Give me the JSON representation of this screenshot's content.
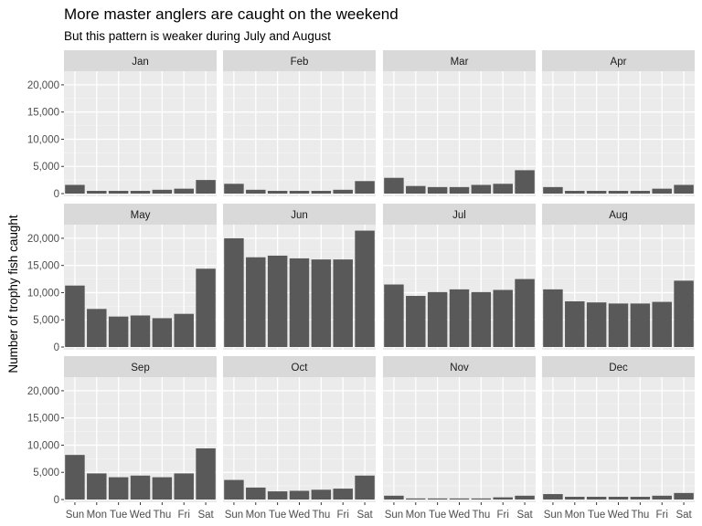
{
  "chart_data": {
    "type": "bar",
    "title": "More master anglers are caught on the weekend",
    "subtitle": "But this pattern is weaker during July and August",
    "xlabel": "",
    "ylabel": "Number of trophy fish caught",
    "ylim": [
      0,
      22000
    ],
    "yticks": [
      0,
      5000,
      10000,
      15000,
      20000
    ],
    "ytick_labels": [
      "0",
      "5,000",
      "10,000",
      "15,000",
      "20,000"
    ],
    "categories": [
      "Sun",
      "Mon",
      "Tue",
      "Wed",
      "Thu",
      "Fri",
      "Sat"
    ],
    "grid": true,
    "bar_color": "#595959",
    "panel_background": "#ebebeb",
    "strip_background": "#d9d9d9",
    "facets": [
      {
        "month": "Jan",
        "values": [
          1600,
          500,
          500,
          500,
          700,
          900,
          2500
        ]
      },
      {
        "month": "Feb",
        "values": [
          1800,
          700,
          500,
          500,
          500,
          700,
          2300
        ]
      },
      {
        "month": "Mar",
        "values": [
          2900,
          1400,
          1200,
          1200,
          1600,
          1800,
          4300
        ]
      },
      {
        "month": "Apr",
        "values": [
          1200,
          500,
          500,
          500,
          500,
          900,
          1600
        ]
      },
      {
        "month": "May",
        "values": [
          11300,
          7000,
          5600,
          5800,
          5300,
          6100,
          14400
        ]
      },
      {
        "month": "Jun",
        "values": [
          20000,
          16500,
          16800,
          16300,
          16100,
          16100,
          21400
        ]
      },
      {
        "month": "Jul",
        "values": [
          11500,
          9400,
          10100,
          10600,
          10100,
          10500,
          12500
        ]
      },
      {
        "month": "Aug",
        "values": [
          10600,
          8400,
          8200,
          8000,
          8000,
          8300,
          12200
        ]
      },
      {
        "month": "Sep",
        "values": [
          8200,
          4800,
          4100,
          4400,
          4100,
          4800,
          9400
        ]
      },
      {
        "month": "Oct",
        "values": [
          3600,
          2200,
          1500,
          1600,
          1800,
          2000,
          4400
        ]
      },
      {
        "month": "Nov",
        "values": [
          700,
          200,
          200,
          200,
          200,
          400,
          700
        ]
      },
      {
        "month": "Dec",
        "values": [
          1000,
          500,
          500,
          500,
          500,
          700,
          1200
        ]
      }
    ]
  }
}
